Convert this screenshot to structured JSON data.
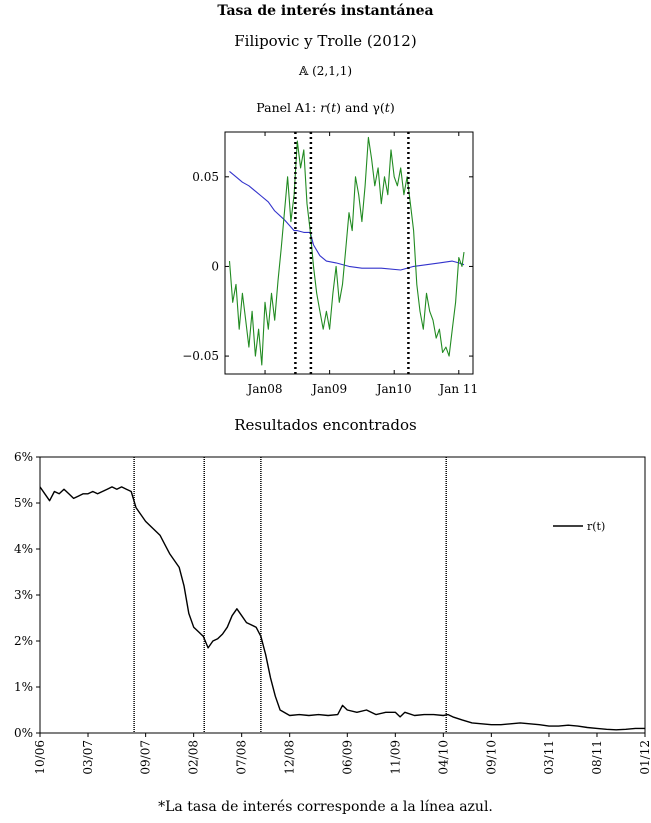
{
  "page": {
    "title": "Tasa de interés instantánea",
    "subtitle": "Filipovic y Trolle (2012)",
    "footnote": "*La tasa de interés corresponde a la línea azul."
  },
  "chart_data": [
    {
      "type": "line",
      "subtitle": "𝔸 (2,1,1)",
      "title": "Panel A1: r(t) and γ(t)",
      "x_ticks": [
        "Jan08",
        "Jan09",
        "Jan10",
        "Jan 11"
      ],
      "x_tick_values": [
        2008.0,
        2009.0,
        2010.0,
        2011.0
      ],
      "xlim": [
        2007.38,
        2011.22
      ],
      "y_ticks": [
        "0.05",
        "0",
        "−0.05"
      ],
      "y_tick_values": [
        0.05,
        0.0,
        -0.05
      ],
      "ylim": [
        -0.06,
        0.075
      ],
      "vertical_dotted_lines": [
        2008.47,
        2008.71,
        2010.22
      ],
      "series": [
        {
          "color": "#3333cc",
          "x": [
            2007.45,
            2007.55,
            2007.65,
            2007.75,
            2007.85,
            2007.95,
            2008.05,
            2008.15,
            2008.3,
            2008.45,
            2008.5,
            2008.6,
            2008.7,
            2008.75,
            2008.85,
            2008.95,
            2009.1,
            2009.3,
            2009.5,
            2009.8,
            2010.1,
            2010.3,
            2010.5,
            2010.7,
            2010.9,
            2011.0,
            2011.08
          ],
          "values": [
            0.053,
            0.05,
            0.047,
            0.045,
            0.042,
            0.039,
            0.036,
            0.031,
            0.026,
            0.02,
            0.02,
            0.019,
            0.019,
            0.012,
            0.006,
            0.003,
            0.002,
            0.0,
            -0.001,
            -0.001,
            -0.002,
            0.0,
            0.001,
            0.002,
            0.003,
            0.002,
            0.001
          ]
        },
        {
          "color": "#228b22",
          "x": [
            2007.45,
            2007.5,
            2007.55,
            2007.6,
            2007.65,
            2007.7,
            2007.75,
            2007.8,
            2007.85,
            2007.9,
            2007.95,
            2008.0,
            2008.05,
            2008.1,
            2008.15,
            2008.2,
            2008.25,
            2008.3,
            2008.35,
            2008.4,
            2008.45,
            2008.5,
            2008.55,
            2008.6,
            2008.65,
            2008.7,
            2008.75,
            2008.8,
            2008.85,
            2008.9,
            2008.95,
            2009.0,
            2009.05,
            2009.1,
            2009.15,
            2009.2,
            2009.25,
            2009.3,
            2009.35,
            2009.4,
            2009.45,
            2009.5,
            2009.55,
            2009.6,
            2009.65,
            2009.7,
            2009.75,
            2009.8,
            2009.85,
            2009.9,
            2009.95,
            2010.0,
            2010.05,
            2010.1,
            2010.15,
            2010.2,
            2010.25,
            2010.3,
            2010.35,
            2010.4,
            2010.45,
            2010.5,
            2010.55,
            2010.6,
            2010.65,
            2010.7,
            2010.75,
            2010.8,
            2010.85,
            2010.9,
            2010.95,
            2011.0,
            2011.05,
            2011.08
          ],
          "values": [
            0.003,
            -0.02,
            -0.01,
            -0.035,
            -0.015,
            -0.03,
            -0.045,
            -0.025,
            -0.05,
            -0.035,
            -0.055,
            -0.02,
            -0.035,
            -0.015,
            -0.03,
            -0.008,
            0.01,
            0.03,
            0.05,
            0.025,
            0.04,
            0.07,
            0.055,
            0.065,
            0.035,
            0.02,
            0.0,
            -0.015,
            -0.025,
            -0.035,
            -0.025,
            -0.035,
            -0.015,
            0.0,
            -0.02,
            -0.01,
            0.01,
            0.03,
            0.02,
            0.05,
            0.04,
            0.025,
            0.045,
            0.072,
            0.06,
            0.045,
            0.055,
            0.035,
            0.05,
            0.04,
            0.065,
            0.05,
            0.045,
            0.055,
            0.04,
            0.05,
            0.035,
            0.02,
            -0.01,
            -0.025,
            -0.035,
            -0.015,
            -0.025,
            -0.03,
            -0.04,
            -0.035,
            -0.048,
            -0.045,
            -0.05,
            -0.035,
            -0.02,
            0.005,
            0.0,
            0.008
          ]
        }
      ]
    },
    {
      "type": "line",
      "title": "Resultados encontrados",
      "legend": [
        "r(t)"
      ],
      "legend_position": "right",
      "y_ticks": [
        "0%",
        "1%",
        "2%",
        "3%",
        "4%",
        "5%",
        "6%"
      ],
      "y_tick_values": [
        0,
        1,
        2,
        3,
        4,
        5,
        6
      ],
      "ylim": [
        0,
        6
      ],
      "x_ticks": [
        "10/06",
        "03/07",
        "09/07",
        "02/08",
        "07/08",
        "12/08",
        "06/09",
        "11/09",
        "04/10",
        "09/10",
        "03/11",
        "08/11",
        "01/12"
      ],
      "x_tick_values": [
        0,
        5,
        11,
        16,
        21,
        26,
        32,
        37,
        42,
        47,
        53,
        58,
        63
      ],
      "xlim": [
        0,
        63
      ],
      "vertical_lines": [
        9.8,
        17.1,
        23.0,
        42.3
      ],
      "series": [
        {
          "name": "r(t)",
          "color": "#000000",
          "x": [
            0,
            0.5,
            1,
            1.5,
            2,
            2.5,
            3,
            3.5,
            4,
            4.5,
            5,
            5.5,
            6,
            6.5,
            7,
            7.5,
            8,
            8.5,
            9,
            9.5,
            10,
            10.5,
            11,
            11.5,
            12,
            12.5,
            13,
            13.5,
            14,
            14.5,
            15,
            15.5,
            16,
            16.5,
            17,
            17.5,
            18,
            18.5,
            19,
            19.5,
            20,
            20.5,
            21,
            21.5,
            22,
            22.5,
            23,
            23.5,
            24,
            24.5,
            25,
            26,
            27,
            28,
            29,
            30,
            31,
            31.5,
            32,
            33,
            34,
            35,
            36,
            37,
            37.5,
            38,
            39,
            40,
            41,
            42,
            42.5,
            43,
            44,
            45,
            46,
            47,
            48,
            49,
            50,
            51,
            52,
            53,
            54,
            55,
            56,
            57,
            58,
            59,
            60,
            61,
            62,
            63
          ],
          "values": [
            5.35,
            5.2,
            5.05,
            5.25,
            5.2,
            5.3,
            5.2,
            5.1,
            5.15,
            5.2,
            5.2,
            5.25,
            5.2,
            5.25,
            5.3,
            5.35,
            5.3,
            5.35,
            5.3,
            5.25,
            4.9,
            4.75,
            4.6,
            4.5,
            4.4,
            4.3,
            4.1,
            3.9,
            3.75,
            3.6,
            3.2,
            2.6,
            2.3,
            2.2,
            2.1,
            1.85,
            2.0,
            2.05,
            2.15,
            2.3,
            2.55,
            2.7,
            2.55,
            2.4,
            2.35,
            2.3,
            2.1,
            1.7,
            1.2,
            0.8,
            0.5,
            0.38,
            0.4,
            0.38,
            0.4,
            0.38,
            0.4,
            0.6,
            0.5,
            0.45,
            0.5,
            0.4,
            0.45,
            0.45,
            0.35,
            0.45,
            0.38,
            0.4,
            0.4,
            0.38,
            0.4,
            0.35,
            0.28,
            0.22,
            0.2,
            0.18,
            0.18,
            0.2,
            0.22,
            0.2,
            0.18,
            0.15,
            0.15,
            0.17,
            0.15,
            0.12,
            0.1,
            0.08,
            0.07,
            0.08,
            0.1,
            0.1
          ]
        }
      ]
    }
  ]
}
